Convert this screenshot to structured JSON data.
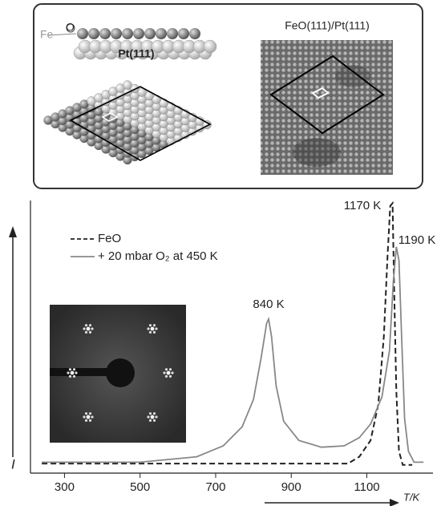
{
  "illustration": {
    "fe": "Fe",
    "o": "O",
    "substrate": "Pt(111)",
    "stm_title": "FeO(111)/Pt(111)"
  },
  "chart_data": {
    "type": "line",
    "x_label": "T/K",
    "y_label": "I",
    "annotations": [
      "1170 K",
      "1190 K",
      "840 K"
    ],
    "xlim": [
      210,
      1275
    ],
    "xticks": [
      300,
      500,
      700,
      900,
      1100
    ],
    "ylim": [
      0,
      100
    ],
    "legend": "upper left",
    "series": [
      {
        "name": "FeO",
        "color": "#222222",
        "dash": true,
        "x": [
          240,
          500,
          800,
          1050,
          1080,
          1110,
          1130,
          1145,
          1155,
          1162,
          1168,
          1172,
          1178,
          1185,
          1195,
          1220
        ],
        "values": [
          3.5,
          3.5,
          3.5,
          3.5,
          6,
          12,
          25,
          50,
          80,
          98,
          99,
          70,
          30,
          8,
          3,
          3
        ]
      },
      {
        "name": "+ 20 mbar O₂ at 450 K",
        "color": "#888888",
        "dash": false,
        "x": [
          240,
          500,
          650,
          720,
          770,
          800,
          820,
          835,
          840,
          848,
          860,
          880,
          920,
          980,
          1040,
          1080,
          1110,
          1140,
          1160,
          1170,
          1178,
          1185,
          1192,
          1200,
          1210,
          1225,
          1250
        ],
        "values": [
          4,
          4,
          6,
          10,
          17,
          27,
          42,
          55,
          56.5,
          50,
          32,
          19,
          12,
          9.5,
          10,
          13,
          18,
          28,
          45,
          70,
          83,
          78,
          50,
          20,
          8,
          4,
          4
        ]
      }
    ]
  }
}
